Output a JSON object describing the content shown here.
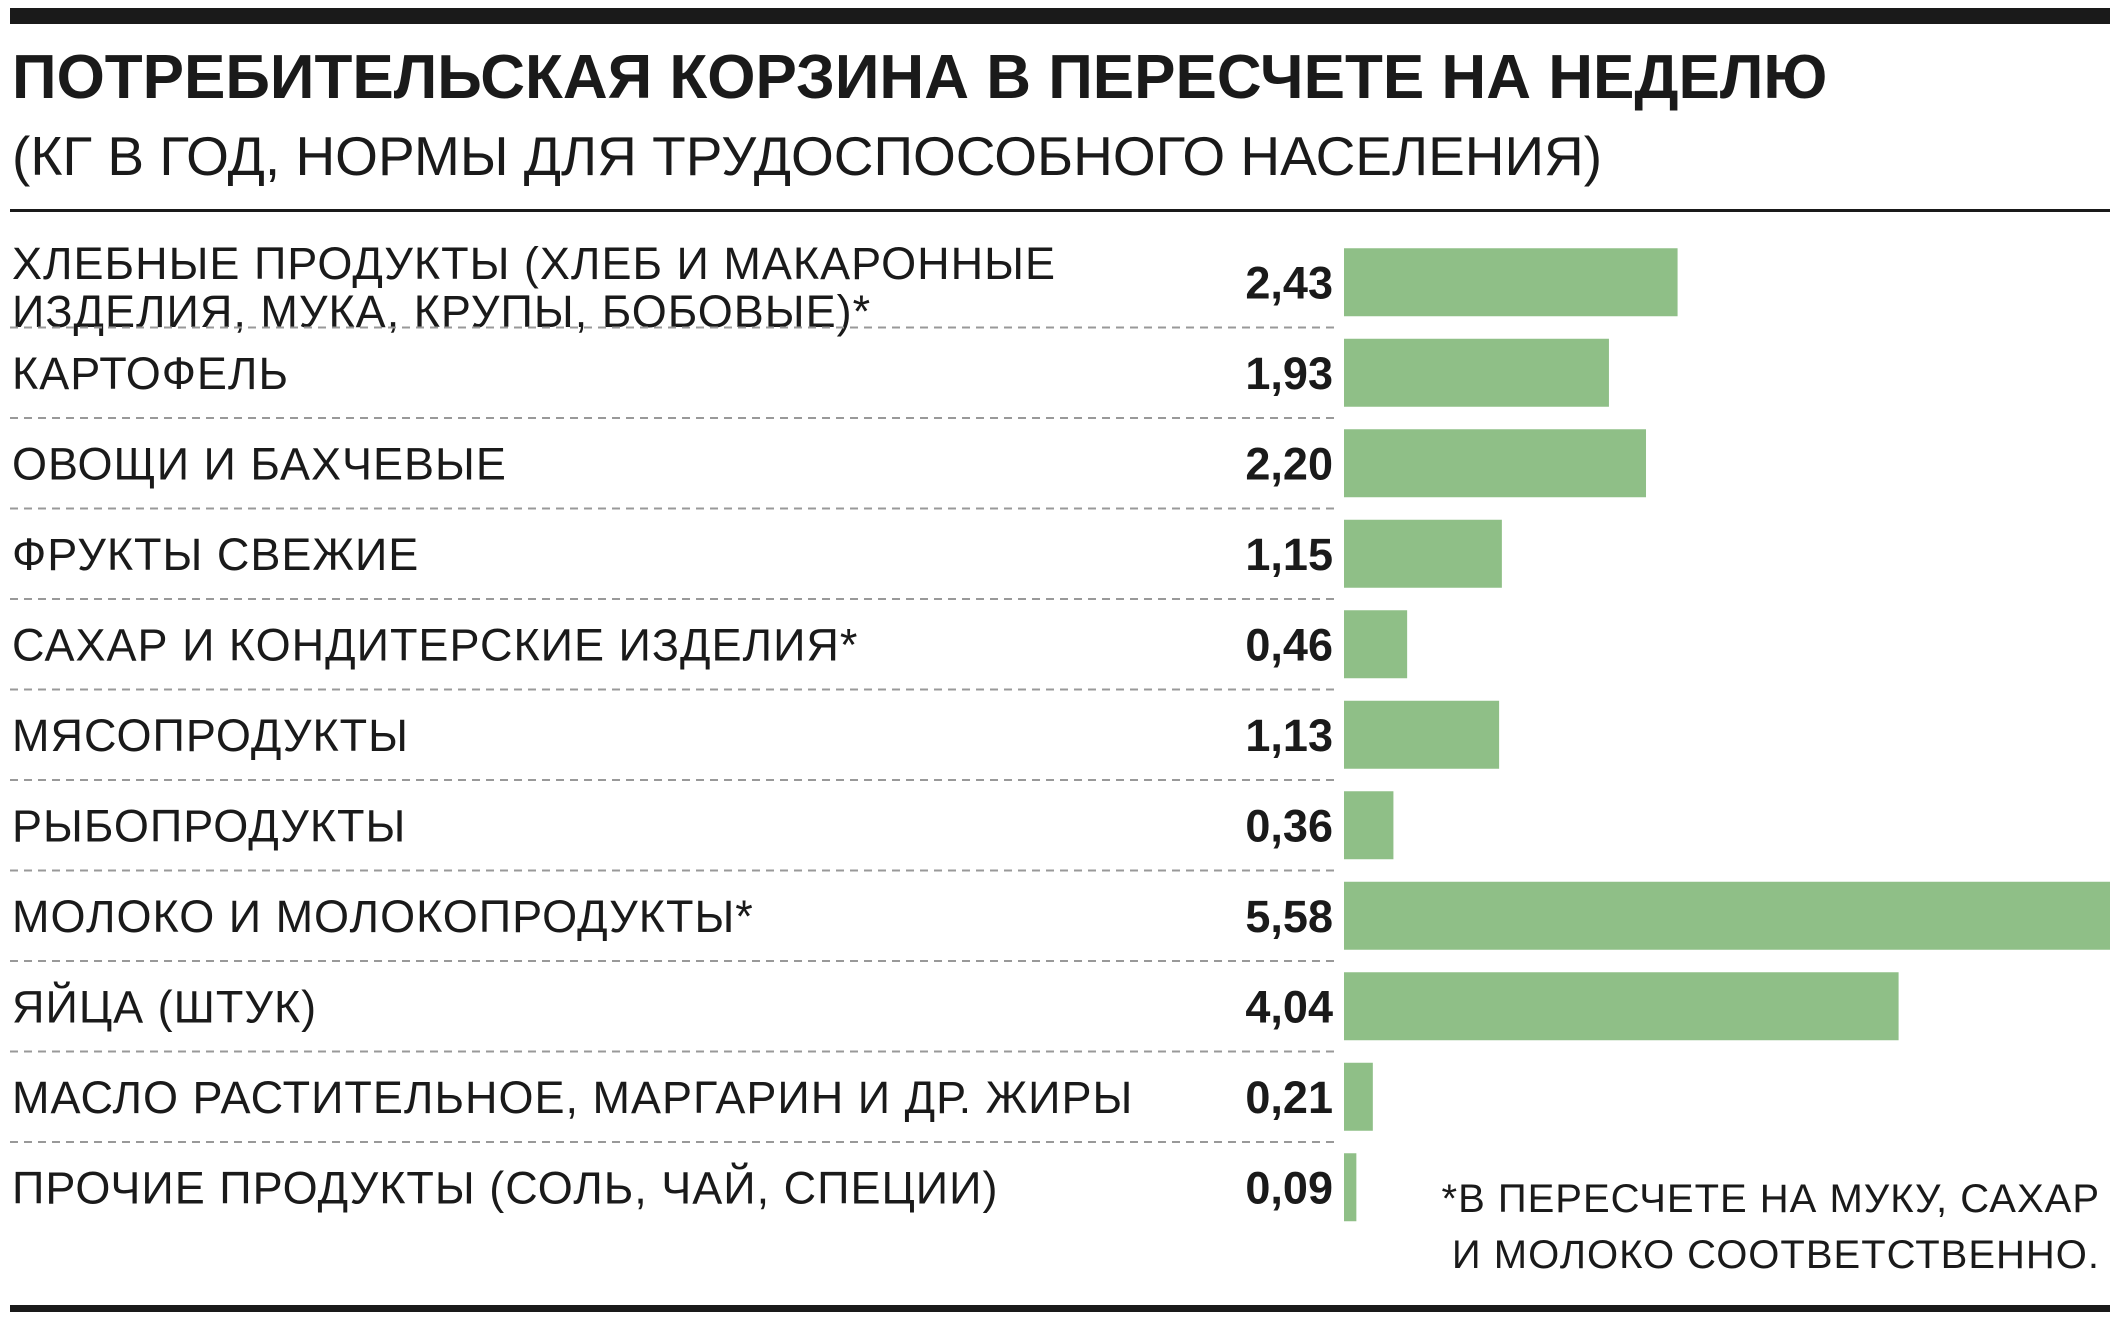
{
  "title": "ПОТРЕБИТЕЛЬСКАЯ КОРЗИНА В ПЕРЕСЧЕТЕ НА НЕДЕЛЮ",
  "subtitle": "(КГ В ГОД, НОРМЫ ДЛЯ ТРУДОСПОСОБНОГО НАСЕЛЕНИЯ)",
  "footnote": [
    "*В ПЕРЕСЧЕТЕ НА МУКУ, САХАР",
    "И МОЛОКО СООТВЕТСТВЕННО."
  ],
  "colors": {
    "bar": "#8fbf87",
    "text": "#1a1a1a",
    "rule": "#1a1a1a",
    "divider": "#999999"
  },
  "chart_data": {
    "type": "bar",
    "orientation": "horizontal",
    "title": "ПОТРЕБИТЕЛЬСКАЯ КОРЗИНА В ПЕРЕСЧЕТЕ НА НЕДЕЛЮ",
    "subtitle": "(КГ В ГОД, НОРМЫ ДЛЯ ТРУДОСПОСОБНОГО НАСЕЛЕНИЯ)",
    "categories": [
      [
        "ХЛЕБНЫЕ ПРОДУКТЫ (ХЛЕБ И МАКАРОННЫЕ",
        "ИЗДЕЛИЯ, МУКА, КРУПЫ, БОБОВЫЕ)*"
      ],
      [
        "КАРТОФЕЛЬ"
      ],
      [
        "ОВОЩИ И БАХЧЕВЫЕ"
      ],
      [
        "ФРУКТЫ СВЕЖИЕ"
      ],
      [
        "САХАР И КОНДИТЕРСКИЕ ИЗДЕЛИЯ*"
      ],
      [
        "МЯСОПРОДУКТЫ"
      ],
      [
        "РЫБОПРОДУКТЫ"
      ],
      [
        "МОЛОКО И МОЛОКОПРОДУКТЫ*"
      ],
      [
        "ЯЙЦА (ШТУК)"
      ],
      [
        "МАСЛО РАСТИТЕЛЬНОЕ, МАРГАРИН И ДР. ЖИРЫ"
      ],
      [
        "ПРОЧИЕ ПРОДУКТЫ (СОЛЬ, ЧАЙ, СПЕЦИИ)"
      ]
    ],
    "values": [
      2.43,
      1.93,
      2.2,
      1.15,
      0.46,
      1.13,
      0.36,
      5.58,
      4.04,
      0.21,
      0.09
    ],
    "value_labels": [
      "2,43",
      "1,93",
      "2,20",
      "1,15",
      "0,46",
      "1,13",
      "0,36",
      "5,58",
      "4,04",
      "0,21",
      "0,09"
    ],
    "xlim": [
      0,
      5.58
    ],
    "grid": false,
    "legend": "none"
  }
}
